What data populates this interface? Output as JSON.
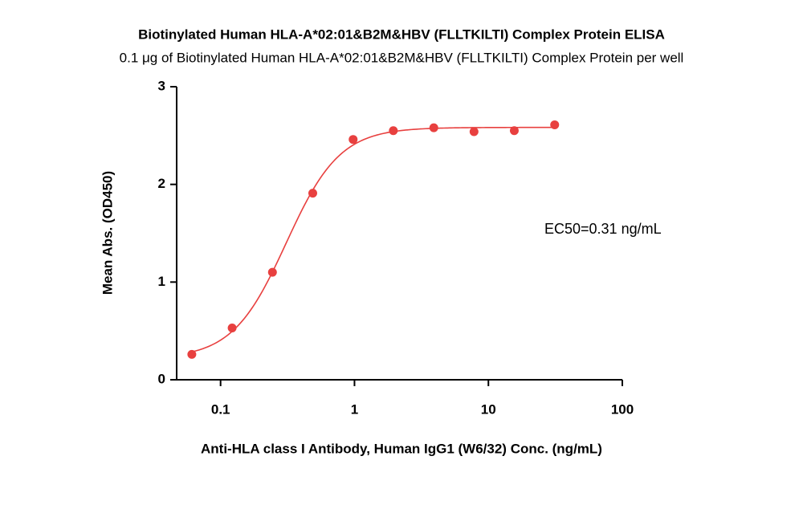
{
  "chart_data": {
    "type": "scatter",
    "title": "Biotinylated Human HLA-A*02:01&B2M&HBV (FLLTKILTI) Complex Protein ELISA",
    "subtitle": "0.1 μg of Biotinylated Human HLA-A*02:01&B2M&HBV (FLLTKILTI) Complex Protein per well",
    "x_label": "Anti-HLA class I Antibody, Human IgG1 (W6/32) Conc. (ng/mL)",
    "y_label": "Mean Abs. (OD450)",
    "annotation": "EC50=0.31 ng/mL",
    "x": [
      0.061,
      0.122,
      0.244,
      0.488,
      0.977,
      1.95,
      3.91,
      7.81,
      15.6,
      31.25
    ],
    "series": [
      {
        "color": "#e8403f",
        "values": [
          0.26,
          0.53,
          1.1,
          1.91,
          2.46,
          2.55,
          2.58,
          2.54,
          2.55,
          2.61
        ]
      }
    ],
    "x_scale": "log",
    "xlim": [
      0.047,
      100
    ],
    "xticks": [
      0.1,
      1,
      10,
      100
    ],
    "ylim": [
      0,
      3
    ],
    "yticks": [
      0,
      1,
      2,
      3
    ]
  }
}
